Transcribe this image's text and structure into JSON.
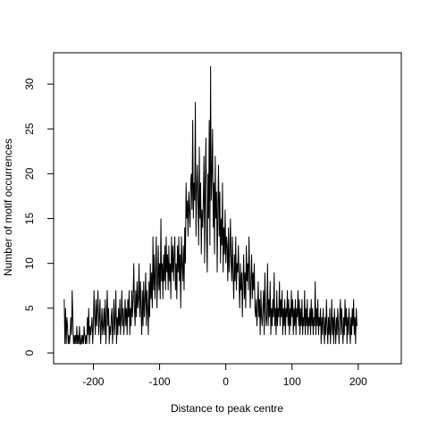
{
  "chart_data": {
    "type": "line",
    "title": "",
    "xlabel": "Distance to peak centre",
    "ylabel": "Number of motif occurrences",
    "xlim": [
      -260,
      265
    ],
    "ylim": [
      -1.2,
      33.5
    ],
    "x_ticks": [
      -200,
      -100,
      0,
      100,
      200
    ],
    "y_ticks": [
      0,
      5,
      10,
      15,
      20,
      25,
      30
    ],
    "x_tick_labels": [
      "-200",
      "-100",
      "0",
      "100",
      "200"
    ],
    "y_tick_labels": [
      "0",
      "5",
      "10",
      "15",
      "20",
      "25",
      "30"
    ],
    "grid": false,
    "legend": "none",
    "x_start": -244,
    "x_step": 1,
    "values": [
      6,
      1,
      5,
      1,
      4,
      3,
      1,
      2,
      1,
      2,
      4,
      2,
      7,
      4,
      1,
      2,
      1,
      2,
      1,
      3,
      1,
      2,
      1,
      3,
      1,
      1,
      2,
      1,
      2,
      1,
      3,
      2,
      1,
      2,
      1,
      4,
      2,
      5,
      1,
      3,
      2,
      3,
      4,
      1,
      3,
      7,
      4,
      2,
      6,
      3,
      5,
      7,
      2,
      4,
      6,
      1,
      3,
      5,
      2,
      3,
      5,
      2,
      6,
      1,
      4,
      7,
      3,
      5,
      1,
      3,
      2,
      4,
      5,
      1,
      3,
      6,
      2,
      4,
      7,
      1,
      4,
      2,
      5,
      3,
      6,
      2,
      4,
      7,
      3,
      5,
      2,
      4,
      6,
      3,
      5,
      2,
      6,
      4,
      7,
      2,
      5,
      3,
      7,
      4,
      6,
      10,
      5,
      3,
      7,
      4,
      8,
      5,
      6,
      10,
      4,
      8,
      5,
      2,
      7,
      3,
      8,
      4,
      6,
      9,
      3,
      7,
      5,
      2,
      8,
      4,
      10,
      6,
      9,
      5,
      13,
      7,
      11,
      6,
      9,
      13,
      5,
      8,
      12,
      7,
      10,
      6,
      15,
      8,
      10,
      6,
      11,
      8,
      12,
      7,
      13,
      9,
      11,
      7,
      12,
      8,
      10,
      6,
      13,
      9,
      12,
      8,
      11,
      13,
      7,
      10,
      6,
      12,
      9,
      13,
      8,
      11,
      5,
      13,
      10,
      8,
      12,
      7,
      14,
      10,
      19,
      15,
      17,
      13,
      18,
      16,
      14,
      19,
      20,
      16,
      26,
      15,
      19,
      17,
      28,
      13,
      18,
      21,
      17,
      12,
      23,
      15,
      19,
      11,
      16,
      14,
      17,
      22,
      10,
      19,
      24,
      13,
      9,
      20,
      15,
      26,
      12,
      32,
      17,
      20,
      25,
      14,
      19,
      11,
      22,
      15,
      18,
      9,
      16,
      21,
      13,
      18,
      10,
      15,
      12,
      19,
      9,
      14,
      11,
      16,
      10,
      13,
      12,
      8,
      14,
      9,
      11,
      15,
      10,
      8,
      13,
      9,
      6,
      11,
      8,
      13,
      7,
      10,
      9,
      12,
      8,
      5,
      10,
      7,
      9,
      4,
      8,
      11,
      6,
      9,
      5,
      12,
      8,
      10,
      7,
      13,
      9,
      5,
      8,
      11,
      6,
      9,
      7,
      10,
      5,
      4,
      6,
      3,
      5,
      8,
      4,
      6,
      2,
      7,
      4,
      3,
      5,
      7,
      2,
      9,
      5,
      3,
      4,
      10,
      3,
      6,
      4,
      8,
      2,
      5,
      3,
      6,
      4,
      9,
      3,
      5,
      2,
      7,
      3,
      5,
      4,
      8,
      3,
      6,
      4,
      7,
      2,
      5,
      3,
      6,
      2,
      5,
      4,
      7,
      3,
      6,
      2,
      5,
      3,
      7,
      4,
      6,
      2,
      5,
      3,
      6,
      2,
      5,
      4,
      7,
      3,
      6,
      2,
      5,
      3,
      6,
      2,
      4,
      3,
      7,
      2,
      5,
      3,
      6,
      2,
      4,
      3,
      5,
      2,
      6,
      3,
      5,
      2,
      4,
      3,
      8,
      2,
      5,
      3,
      6,
      2,
      4,
      3,
      5,
      1,
      4,
      2,
      5,
      3,
      1,
      4,
      2,
      6,
      3,
      1,
      4,
      2,
      5,
      1,
      3,
      6,
      2,
      4,
      1,
      5,
      3,
      1,
      4,
      2,
      5,
      3,
      1,
      4,
      6,
      2,
      5,
      3,
      1,
      4,
      2,
      6,
      3,
      5,
      1,
      4,
      2,
      5,
      3,
      1,
      4,
      2,
      5,
      3,
      6,
      2,
      4,
      1,
      5,
      3
    ]
  }
}
